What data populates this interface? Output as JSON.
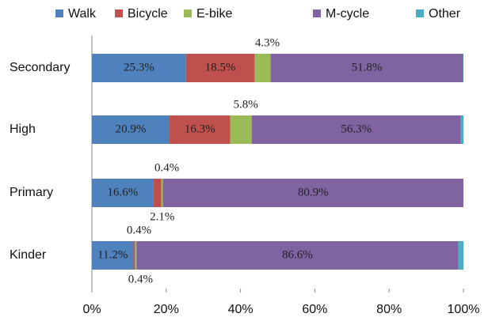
{
  "chart_data": {
    "type": "stacked_barh",
    "categories": [
      "Secondary",
      "High",
      "Primary",
      "Kinder"
    ],
    "series": [
      {
        "name": "Walk",
        "color": "#4f81bd",
        "values": [
          25.3,
          20.9,
          16.6,
          11.2
        ],
        "value_labels": [
          "25.3%",
          "20.9%",
          "16.6%",
          "11.2%"
        ]
      },
      {
        "name": "Bicycle",
        "color": "#c0504d",
        "values": [
          18.5,
          16.3,
          2.1,
          0.4
        ],
        "value_labels": [
          "18.5%",
          "16.3%",
          "2.1%",
          "0.4%"
        ]
      },
      {
        "name": "E-bike",
        "color": "#9bbb59",
        "values": [
          4.3,
          5.8,
          0.4,
          0.4
        ],
        "value_labels": [
          "4.3%",
          "5.8%",
          "0.4%",
          "0.4%"
        ]
      },
      {
        "name": "M-cycle",
        "color": "#8064a2",
        "values": [
          51.8,
          56.3,
          80.9,
          86.6
        ],
        "value_labels": [
          "51.8%",
          "56.3%",
          "80.9%",
          "86.6%"
        ]
      },
      {
        "name": "Other",
        "color": "#4bacc6",
        "values": [
          0.1,
          0.7,
          0,
          1.4
        ],
        "value_labels": [
          null,
          null,
          null,
          null
        ]
      }
    ],
    "xlim": [
      0,
      100
    ],
    "xticks": [
      {
        "value": 0,
        "label": "0%"
      },
      {
        "value": 20,
        "label": "20%"
      },
      {
        "value": 40,
        "label": "40%"
      },
      {
        "value": 60,
        "label": "60%"
      },
      {
        "value": 80,
        "label": "80%"
      },
      {
        "value": 100,
        "label": "100%"
      }
    ],
    "legend": "top"
  }
}
